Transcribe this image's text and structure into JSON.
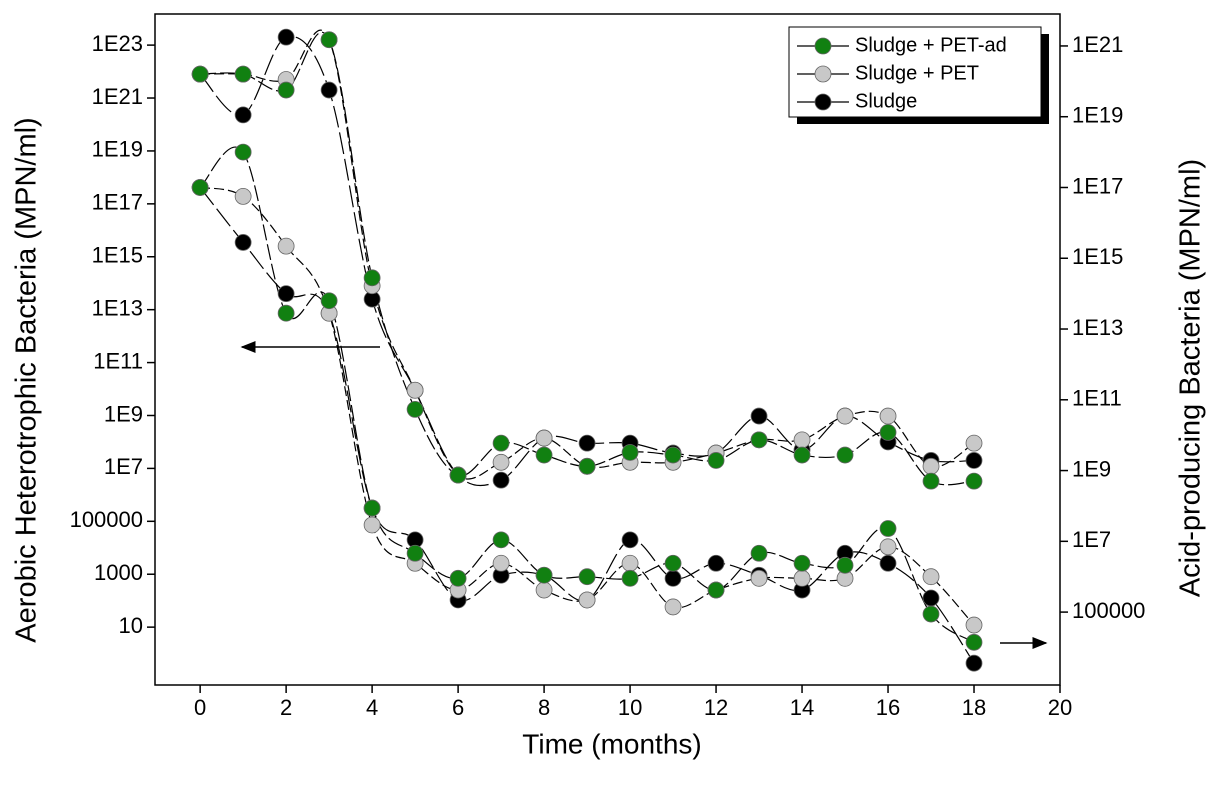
{
  "chart_data": {
    "type": "line",
    "xlabel": "Time (months)",
    "ylabel": "Aerobic Heterotrophic Bacteria (MPN/ml)",
    "y2label": "Acid-producing Bacteria (MPN/ml)",
    "x": [
      0,
      1,
      2,
      3,
      4,
      5,
      6,
      7,
      8,
      9,
      10,
      11,
      12,
      13,
      14,
      15,
      16,
      17,
      18
    ],
    "xlim": [
      -1.05,
      20
    ],
    "xticks": [
      0,
      2,
      4,
      6,
      8,
      10,
      12,
      14,
      16,
      18,
      20
    ],
    "ylog": true,
    "y2log": true,
    "ylim": [
      0.065,
      1.5e+24
    ],
    "yticks": [
      10,
      1000,
      100000,
      {
        "value": 10000000.0,
        "label": "1E7"
      },
      {
        "value": 1000000000.0,
        "label": "1E9"
      },
      {
        "value": 100000000000.0,
        "label": "1E11"
      },
      {
        "value": 10000000000000.0,
        "label": "1E13"
      },
      {
        "value": 1000000000000000.0,
        "label": "1E15"
      },
      {
        "value": 1e+17,
        "label": "1E17"
      },
      {
        "value": 1e+19,
        "label": "1E19"
      },
      {
        "value": 1e+21,
        "label": "1E21"
      },
      {
        "value": 1e+23,
        "label": "1E23"
      }
    ],
    "y2lim": [
      870,
      8e+21
    ],
    "y2ticks": [
      100000,
      {
        "value": 10000000.0,
        "label": "1E7"
      },
      {
        "value": 1000000000.0,
        "label": "1E9"
      },
      {
        "value": 100000000000.0,
        "label": "1E11"
      },
      {
        "value": 10000000000000.0,
        "label": "1E13"
      },
      {
        "value": 1000000000000000.0,
        "label": "1E15"
      },
      {
        "value": 1e+17,
        "label": "1E17"
      },
      {
        "value": 1e+19,
        "label": "1E19"
      },
      {
        "value": 1e+21,
        "label": "1E21"
      }
    ],
    "line_color": "#000000",
    "legend": "upper right",
    "series": [
      {
        "name": "Sludge + PET-ad",
        "color": "#118011",
        "axis": "y",
        "values": [
          8e+21,
          8e+21,
          2e+21,
          1.6e+23,
          160000000000000.0,
          1700000000.0,
          5600000.0,
          90000000.0,
          32000000.0,
          12000000.0,
          40000000.0,
          32000000.0,
          20000000.0,
          120000000.0,
          32000000.0,
          32000000.0,
          230000000.0,
          3300000.0,
          3300000.0
        ]
      },
      {
        "name": "Sludge + PET",
        "color": "#c8c8c8",
        "axis": "y",
        "values": [
          8e+21,
          8e+21,
          5e+21,
          1.6e+23,
          80000000000000.0,
          9000000000.0,
          5600000.0,
          17000000.0,
          140000000.0,
          12000000.0,
          17000000.0,
          17000000.0,
          38000000.0,
          120000000.0,
          120000000.0,
          950000000.0,
          950000000.0,
          12000000.0,
          90000000.0
        ]
      },
      {
        "name": "Sludge",
        "color": "#000000",
        "axis": "y",
        "values": [
          8e+21,
          2.3e+20,
          2e+23,
          2e+21,
          25000000000000.0,
          9000000000.0,
          5600000.0,
          3600000.0,
          140000000.0,
          90000000.0,
          90000000.0,
          38000000.0,
          38000000.0,
          950000000.0,
          50000000.0,
          950000000.0,
          100000000.0,
          20000000.0,
          20000000.0
        ]
      },
      {
        "name": "Sludge + PET-ad",
        "color": "#118011",
        "axis": "y2",
        "values": [
          1e+17,
          1e+18,
          28000000000000.0,
          63000000000000.0,
          87000000.0,
          4600000.0,
          900000.0,
          11000000.0,
          1100000.0,
          1000000.0,
          900000.0,
          2400000.0,
          420000.0,
          4600000.0,
          2400000.0,
          2100000.0,
          23000000.0,
          88000.0,
          14000.0
        ]
      },
      {
        "name": "Sludge + PET",
        "color": "#c8c8c8",
        "axis": "y2",
        "values": [
          1e+17,
          5.6e+16,
          2200000000000000.0,
          28000000000000.0,
          29000000.0,
          2400000.0,
          420000.0,
          2400000.0,
          420000.0,
          220000.0,
          2400000.0,
          140000.0,
          420000.0,
          900000.0,
          900000.0,
          900000.0,
          7000000.0,
          1000000.0,
          43000.0
        ]
      },
      {
        "name": "Sludge",
        "color": "#000000",
        "axis": "y2",
        "values": [
          1e+17,
          2800000000000000.0,
          100000000000000.0,
          28000000000000.0,
          87000000.0,
          11000000.0,
          220000.0,
          1100000.0,
          1100000.0,
          220000.0,
          11000000.0,
          900000.0,
          2400000.0,
          1100000.0,
          420000.0,
          4600000.0,
          2400000.0,
          250000.0,
          3600.0
        ]
      }
    ]
  }
}
